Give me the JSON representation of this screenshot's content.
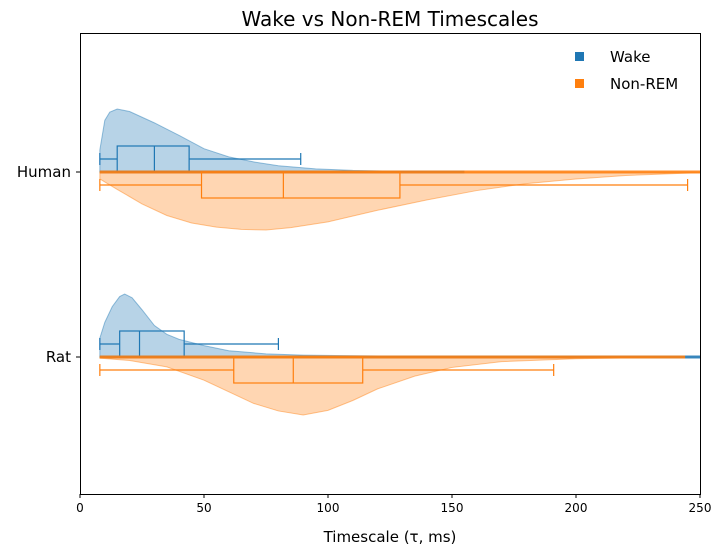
{
  "chart_data": {
    "type": "violin",
    "title": "Wake vs Non-REM Timescales",
    "xlabel": "Timescale (τ, ms)",
    "ylabel": "",
    "xlim": [
      0,
      250
    ],
    "xticks": [
      "0",
      "50",
      "100",
      "150",
      "200",
      "250"
    ],
    "categories": [
      "Human",
      "Rat"
    ],
    "legend": {
      "position": "top-right"
    },
    "series": [
      {
        "name": "Wake",
        "color": "#1f77b4",
        "side": "upper",
        "groups": [
          {
            "category": "Human",
            "whisker_low": 8,
            "q1": 15,
            "median": 30,
            "q3": 44,
            "whisker_high": 89,
            "range": [
              8,
              155
            ],
            "density": [
              [
                8,
                0.35
              ],
              [
                10,
                0.82
              ],
              [
                12,
                0.95
              ],
              [
                15,
                1.0
              ],
              [
                20,
                0.96
              ],
              [
                30,
                0.78
              ],
              [
                40,
                0.58
              ],
              [
                50,
                0.37
              ],
              [
                60,
                0.24
              ],
              [
                70,
                0.16
              ],
              [
                80,
                0.1
              ],
              [
                95,
                0.05
              ],
              [
                110,
                0.025
              ],
              [
                130,
                0.01
              ],
              [
                155,
                0.0
              ]
            ]
          },
          {
            "category": "Rat",
            "whisker_low": 8,
            "q1": 16,
            "median": 24,
            "q3": 42,
            "whisker_high": 80,
            "range": [
              8,
              250
            ],
            "density": [
              [
                8,
                0.3
              ],
              [
                10,
                0.55
              ],
              [
                13,
                0.8
              ],
              [
                16,
                0.96
              ],
              [
                18,
                1.0
              ],
              [
                21,
                0.94
              ],
              [
                25,
                0.75
              ],
              [
                30,
                0.5
              ],
              [
                35,
                0.36
              ],
              [
                40,
                0.28
              ],
              [
                50,
                0.18
              ],
              [
                60,
                0.1
              ],
              [
                75,
                0.05
              ],
              [
                90,
                0.03
              ],
              [
                120,
                0.015
              ],
              [
                180,
                0.005
              ],
              [
                250,
                0.0
              ]
            ]
          }
        ]
      },
      {
        "name": "Non-REM",
        "color": "#ff7f0e",
        "side": "lower",
        "groups": [
          {
            "category": "Human",
            "whisker_low": 8,
            "q1": 49,
            "median": 82,
            "q3": 129,
            "whisker_high": 245,
            "range": [
              8,
              250
            ],
            "density": [
              [
                8,
                0.12
              ],
              [
                15,
                0.3
              ],
              [
                25,
                0.55
              ],
              [
                35,
                0.75
              ],
              [
                45,
                0.88
              ],
              [
                55,
                0.95
              ],
              [
                65,
                0.99
              ],
              [
                75,
                1.0
              ],
              [
                85,
                0.96
              ],
              [
                100,
                0.86
              ],
              [
                120,
                0.66
              ],
              [
                140,
                0.48
              ],
              [
                160,
                0.32
              ],
              [
                180,
                0.2
              ],
              [
                200,
                0.12
              ],
              [
                220,
                0.06
              ],
              [
                250,
                0.01
              ]
            ]
          },
          {
            "category": "Rat",
            "whisker_low": 8,
            "q1": 62,
            "median": 86,
            "q3": 114,
            "whisker_high": 191,
            "range": [
              8,
              244
            ],
            "density": [
              [
                8,
                0.02
              ],
              [
                20,
                0.06
              ],
              [
                35,
                0.17
              ],
              [
                50,
                0.4
              ],
              [
                60,
                0.6
              ],
              [
                70,
                0.8
              ],
              [
                80,
                0.93
              ],
              [
                90,
                1.0
              ],
              [
                100,
                0.92
              ],
              [
                110,
                0.75
              ],
              [
                120,
                0.55
              ],
              [
                135,
                0.33
              ],
              [
                150,
                0.18
              ],
              [
                170,
                0.08
              ],
              [
                200,
                0.03
              ],
              [
                244,
                0.0
              ]
            ]
          }
        ]
      }
    ]
  }
}
